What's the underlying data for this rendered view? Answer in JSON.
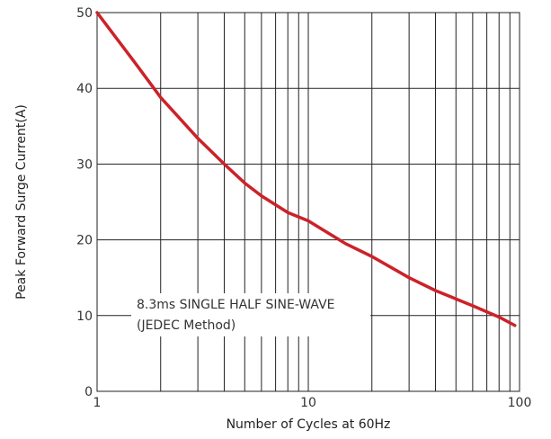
{
  "chart_data": {
    "type": "line",
    "title": "",
    "xlabel": "Number of Cycles at 60Hz",
    "ylabel": "Peak Forward Surge Current(A)",
    "xscale": "log",
    "xlim": [
      1,
      100
    ],
    "ylim": [
      0,
      50
    ],
    "grid": true,
    "x_ticks": [
      {
        "value": 1,
        "label": "1"
      },
      {
        "value": 10,
        "label": "10"
      },
      {
        "value": 100,
        "label": "100"
      }
    ],
    "y_ticks": [
      {
        "value": 0,
        "label": "0"
      },
      {
        "value": 10,
        "label": "10"
      },
      {
        "value": 20,
        "label": "20"
      },
      {
        "value": 30,
        "label": "30"
      },
      {
        "value": 40,
        "label": "40"
      },
      {
        "value": 50,
        "label": "50"
      }
    ],
    "series": [
      {
        "color": "#cc2229",
        "x": [
          1,
          1.5,
          2,
          3,
          4,
          5,
          6,
          8,
          10,
          15,
          20,
          30,
          40,
          50,
          60,
          80,
          95
        ],
        "y": [
          50,
          43.5,
          38.8,
          33.4,
          30,
          27.5,
          25.8,
          23.6,
          22.5,
          19.5,
          17.8,
          15,
          13.3,
          12.2,
          11.3,
          9.8,
          8.7
        ]
      }
    ],
    "annotation": {
      "lines": [
        "8.3ms SINGLE HALF SINE-WAVE",
        "(JEDEC Method)"
      ]
    }
  }
}
